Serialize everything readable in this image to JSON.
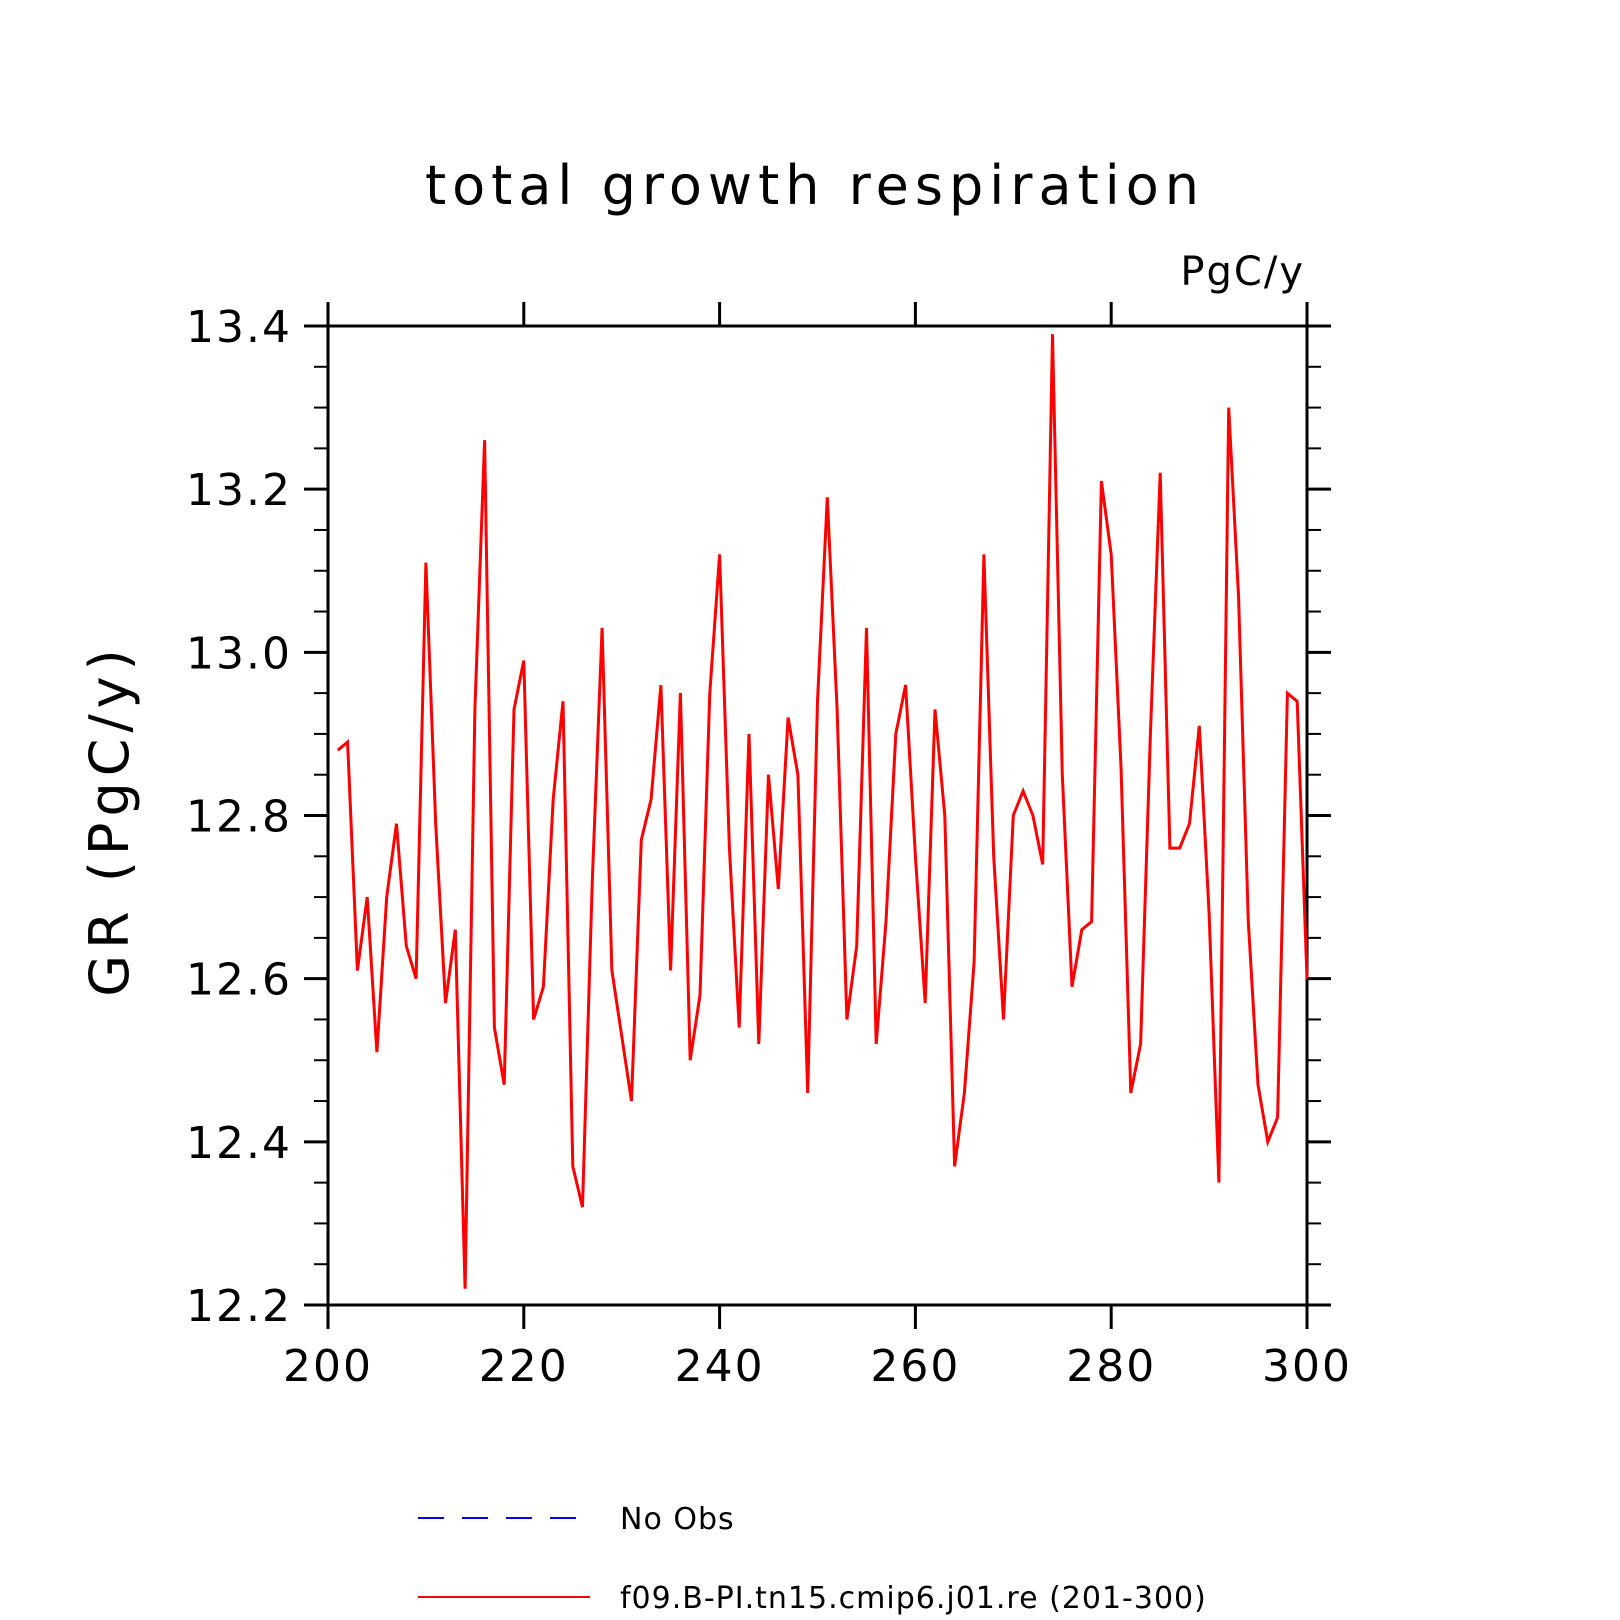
{
  "chart_data": {
    "type": "line",
    "title": "total growth respiration",
    "units_label": "PgC/y",
    "ylabel": "GR  (PgC/y)",
    "xlabel": "",
    "xlim": [
      200,
      300
    ],
    "ylim": [
      12.2,
      13.4
    ],
    "x_ticks": [
      "200",
      "220",
      "240",
      "260",
      "280",
      "300"
    ],
    "y_ticks": [
      "12.2",
      "12.4",
      "12.6",
      "12.8",
      "13.0",
      "13.2",
      "13.4"
    ],
    "grid": false,
    "legend_position": "bottom",
    "legend": [
      {
        "label": "No Obs",
        "color": "#0000ff",
        "style": "dashed"
      },
      {
        "label": "f09.B-PI.tn15.cmip6.j01.re (201-300)",
        "color": "#ff0000",
        "style": "solid"
      }
    ],
    "series": [
      {
        "name": "f09.B-PI.tn15.cmip6.j01.re (201-300)",
        "color": "#ff0000",
        "x": [
          201,
          202,
          203,
          204,
          205,
          206,
          207,
          208,
          209,
          210,
          211,
          212,
          213,
          214,
          215,
          216,
          217,
          218,
          219,
          220,
          221,
          222,
          223,
          224,
          225,
          226,
          227,
          228,
          229,
          230,
          231,
          232,
          233,
          234,
          235,
          236,
          237,
          238,
          239,
          240,
          241,
          242,
          243,
          244,
          245,
          246,
          247,
          248,
          249,
          250,
          251,
          252,
          253,
          254,
          255,
          256,
          257,
          258,
          259,
          260,
          261,
          262,
          263,
          264,
          265,
          266,
          267,
          268,
          269,
          270,
          271,
          272,
          273,
          274,
          275,
          276,
          277,
          278,
          279,
          280,
          281,
          282,
          283,
          284,
          285,
          286,
          287,
          288,
          289,
          290,
          291,
          292,
          293,
          294,
          295,
          296,
          297,
          298,
          299,
          300
        ],
        "values": [
          12.88,
          12.89,
          12.61,
          12.7,
          12.51,
          12.7,
          12.79,
          12.64,
          12.6,
          13.11,
          12.79,
          12.57,
          12.66,
          12.22,
          12.93,
          13.26,
          12.54,
          12.47,
          12.93,
          12.99,
          12.55,
          12.59,
          12.82,
          12.94,
          12.37,
          12.32,
          12.72,
          13.03,
          12.61,
          12.53,
          12.45,
          12.77,
          12.82,
          12.96,
          12.61,
          12.95,
          12.5,
          12.58,
          12.95,
          13.12,
          12.76,
          12.54,
          12.9,
          12.52,
          12.85,
          12.71,
          12.92,
          12.85,
          12.46,
          12.94,
          13.19,
          12.93,
          12.55,
          12.64,
          13.03,
          12.52,
          12.67,
          12.9,
          12.96,
          12.75,
          12.57,
          12.93,
          12.8,
          12.37,
          12.46,
          12.62,
          13.12,
          12.75,
          12.55,
          12.8,
          12.83,
          12.8,
          12.74,
          13.39,
          12.85,
          12.59,
          12.66,
          12.67,
          13.21,
          13.12,
          12.86,
          12.46,
          12.52,
          12.9,
          13.22,
          12.76,
          12.76,
          12.79,
          12.91,
          12.68,
          12.35,
          13.3,
          13.07,
          12.67,
          12.47,
          12.4,
          12.43,
          12.95,
          12.94,
          12.6
        ]
      }
    ]
  }
}
